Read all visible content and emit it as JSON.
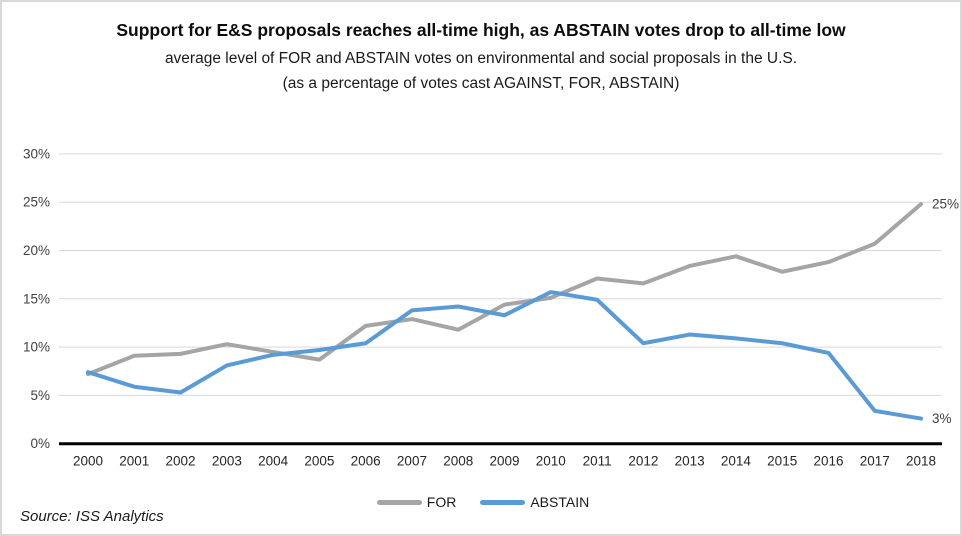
{
  "header": {
    "title": "Support for E&S proposals reaches all-time high, as ABSTAIN votes drop to all-time low",
    "subtitle": "average level of FOR and ABSTAIN votes on environmental and social proposals in the U.S. (as a percentage of votes cast AGAINST, FOR, ABSTAIN)"
  },
  "source": "Source: ISS Analytics",
  "chart_data": {
    "type": "line",
    "x": [
      2000,
      2001,
      2002,
      2003,
      2004,
      2005,
      2006,
      2007,
      2008,
      2009,
      2010,
      2011,
      2012,
      2013,
      2014,
      2015,
      2016,
      2017,
      2018
    ],
    "series": [
      {
        "name": "FOR",
        "color": "#a5a5a5",
        "values": [
          7.2,
          9.1,
          9.3,
          10.3,
          9.5,
          8.7,
          12.2,
          12.9,
          11.8,
          14.4,
          15.1,
          17.1,
          16.6,
          18.4,
          19.4,
          17.8,
          18.8,
          20.7,
          24.8
        ],
        "end_label": "25%"
      },
      {
        "name": "ABSTAIN",
        "color": "#5b9bd5",
        "values": [
          7.4,
          5.9,
          5.3,
          8.1,
          9.2,
          9.7,
          10.4,
          13.8,
          14.2,
          13.3,
          15.7,
          14.9,
          10.4,
          11.3,
          10.9,
          10.4,
          9.4,
          3.4,
          2.6
        ],
        "end_label": "3%"
      }
    ],
    "title": "Support for E&S proposals reaches all-time high, as ABSTAIN votes drop to all-time low",
    "xlabel": "",
    "ylabel": "",
    "ylim": [
      0,
      30
    ],
    "yticks": [
      0,
      5,
      10,
      15,
      20,
      25,
      30
    ],
    "ytick_suffix": "%",
    "grid": true,
    "legend_position": "bottom-center",
    "colors": {
      "gridline": "#d9d9d9",
      "axis": "#000000",
      "tick_text": "#404040",
      "xtick_text": "#262626",
      "end_label_text": "#404040"
    }
  }
}
